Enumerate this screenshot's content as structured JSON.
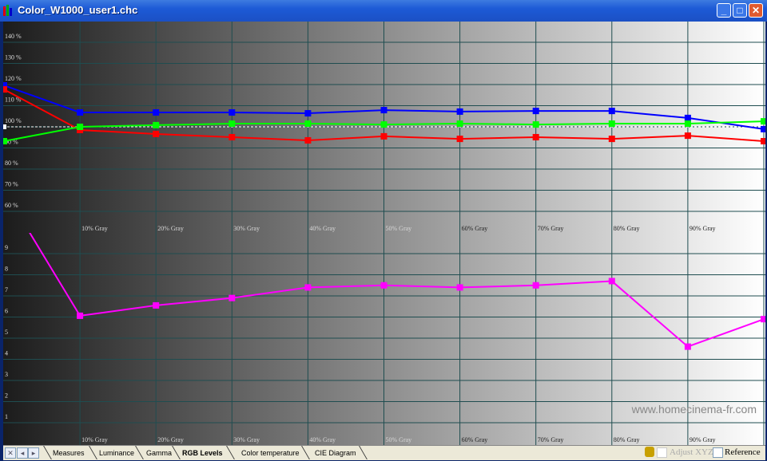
{
  "window": {
    "title": "Color_W1000_user1.chc",
    "minimize_icon": "minimize-icon",
    "maximize_icon": "maximize-icon",
    "close_icon": "close-icon"
  },
  "watermark": "www.homecinema-fr.com",
  "tabs": [
    {
      "label": "Measures",
      "active": false
    },
    {
      "label": "Luminance",
      "active": false
    },
    {
      "label": "Gamma",
      "active": false
    },
    {
      "label": "RGB Levels",
      "active": true
    },
    {
      "label": "Color temperature",
      "active": false
    },
    {
      "label": "CIE Diagram",
      "active": false
    }
  ],
  "status": {
    "adjust_xyz_label": "Adjust XYZ",
    "adjust_xyz_checked": false,
    "adjust_xyz_enabled": false,
    "reference_label": "Reference",
    "reference_checked": false
  },
  "chart_data": [
    {
      "type": "line",
      "title": "",
      "x": [
        0,
        10,
        20,
        30,
        40,
        50,
        60,
        70,
        80,
        90,
        100
      ],
      "x_tick_labels": [
        "10% Gray",
        "20% Gray",
        "30% Gray",
        "40% Gray",
        "50% Gray",
        "60% Gray",
        "70% Gray",
        "80% Gray",
        "90% Gray"
      ],
      "y_tick_labels": [
        "140 %",
        "130 %",
        "120 %",
        "110 %",
        "100 %",
        "90 %",
        "80 %",
        "70 %",
        "60 %"
      ],
      "y_ticks": [
        140,
        130,
        120,
        110,
        100,
        90,
        80,
        70,
        60
      ],
      "ylim": [
        55,
        148
      ],
      "reference_line": 100,
      "grid": true,
      "series": [
        {
          "color": "#0000ff",
          "values": [
            119.6,
            106.8,
            106.8,
            106.8,
            106.4,
            107.9,
            107.2,
            107.5,
            107.5,
            104.2,
            98.9
          ]
        },
        {
          "color": "#ff0000",
          "values": [
            117.7,
            98.5,
            96.6,
            95.1,
            93.6,
            95.5,
            94.3,
            95.1,
            94.3,
            95.8,
            93.2
          ]
        },
        {
          "color": "#00ff00",
          "values": [
            93.2,
            100.0,
            100.8,
            101.5,
            101.5,
            101.1,
            101.5,
            101.1,
            101.5,
            101.5,
            102.6
          ]
        }
      ]
    },
    {
      "type": "line",
      "title": "",
      "x": [
        0,
        10,
        20,
        30,
        40,
        50,
        60,
        70,
        80,
        90,
        100
      ],
      "x_tick_labels": [
        "10% Gray",
        "20% Gray",
        "30% Gray",
        "40% Gray",
        "50% Gray",
        "60% Gray",
        "70% Gray",
        "80% Gray",
        "90% Gray"
      ],
      "y_tick_labels": [
        "9",
        "8",
        "7",
        "6",
        "5",
        "4",
        "3",
        "2",
        "1"
      ],
      "y_ticks": [
        9,
        8,
        7,
        6,
        5,
        4,
        3,
        2,
        1
      ],
      "ylim": [
        0,
        10
      ],
      "grid": true,
      "series": [
        {
          "color": "#ff00ff",
          "values": [
            12.0,
            6.06,
            6.55,
            6.9,
            7.4,
            7.5,
            7.4,
            7.5,
            7.7,
            4.6,
            5.9
          ]
        }
      ]
    }
  ]
}
